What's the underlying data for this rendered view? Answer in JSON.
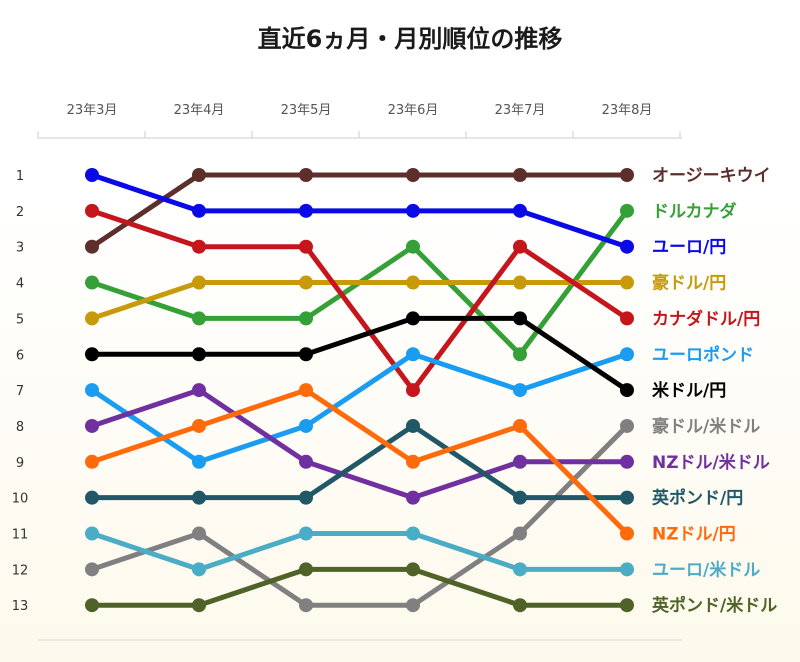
{
  "chart_data": {
    "type": "line",
    "title": "直近6ヵ月・月別順位の推移",
    "categories": [
      "23年3月",
      "23年4月",
      "23年5月",
      "23年6月",
      "23年7月",
      "23年8月"
    ],
    "y_ticks": [
      "1",
      "2",
      "3",
      "4",
      "5",
      "6",
      "7",
      "8",
      "9",
      "10",
      "11",
      "12",
      "13"
    ],
    "ylim": [
      1,
      13
    ],
    "y_inverted": true,
    "grid": false,
    "legend": "labels at right end of each line",
    "series": [
      {
        "name": "オージーキウイ",
        "color": "#5c2f2a",
        "values": [
          3,
          1,
          1,
          1,
          1,
          1
        ]
      },
      {
        "name": "ドルカナダ",
        "color": "#36a038",
        "values": [
          4,
          5,
          5,
          3,
          6,
          2
        ]
      },
      {
        "name": "ユーロ/円",
        "color": "#0a0ae6",
        "values": [
          1,
          2,
          2,
          2,
          2,
          3
        ]
      },
      {
        "name": "豪ドル/円",
        "color": "#c79a0a",
        "values": [
          5,
          4,
          4,
          4,
          4,
          4
        ]
      },
      {
        "name": "カナダドル/円",
        "color": "#c4161c",
        "values": [
          2,
          3,
          3,
          7,
          3,
          5
        ]
      },
      {
        "name": "ユーロポンド",
        "color": "#1a9cf0",
        "values": [
          7,
          9,
          8,
          6,
          7,
          6
        ]
      },
      {
        "name": "米ドル/円",
        "color": "#000000",
        "values": [
          6,
          6,
          6,
          5,
          5,
          7
        ]
      },
      {
        "name": "豪ドル/米ドル",
        "color": "#808080",
        "values": [
          12,
          11,
          13,
          13,
          11,
          8
        ]
      },
      {
        "name": "NZドル/米ドル",
        "color": "#7030a0",
        "values": [
          8,
          7,
          9,
          10,
          9,
          9
        ]
      },
      {
        "name": "英ポンド/円",
        "color": "#215868",
        "values": [
          10,
          10,
          10,
          8,
          10,
          10
        ]
      },
      {
        "name": "NZドル/円",
        "color": "#ff6a0a",
        "values": [
          9,
          8,
          7,
          9,
          8,
          11
        ]
      },
      {
        "name": "ユーロ/米ドル",
        "color": "#4bacc6",
        "values": [
          11,
          12,
          11,
          11,
          12,
          12
        ]
      },
      {
        "name": "英ポンド/米ドル",
        "color": "#4f6228",
        "values": [
          13,
          13,
          12,
          12,
          13,
          13
        ]
      }
    ]
  }
}
